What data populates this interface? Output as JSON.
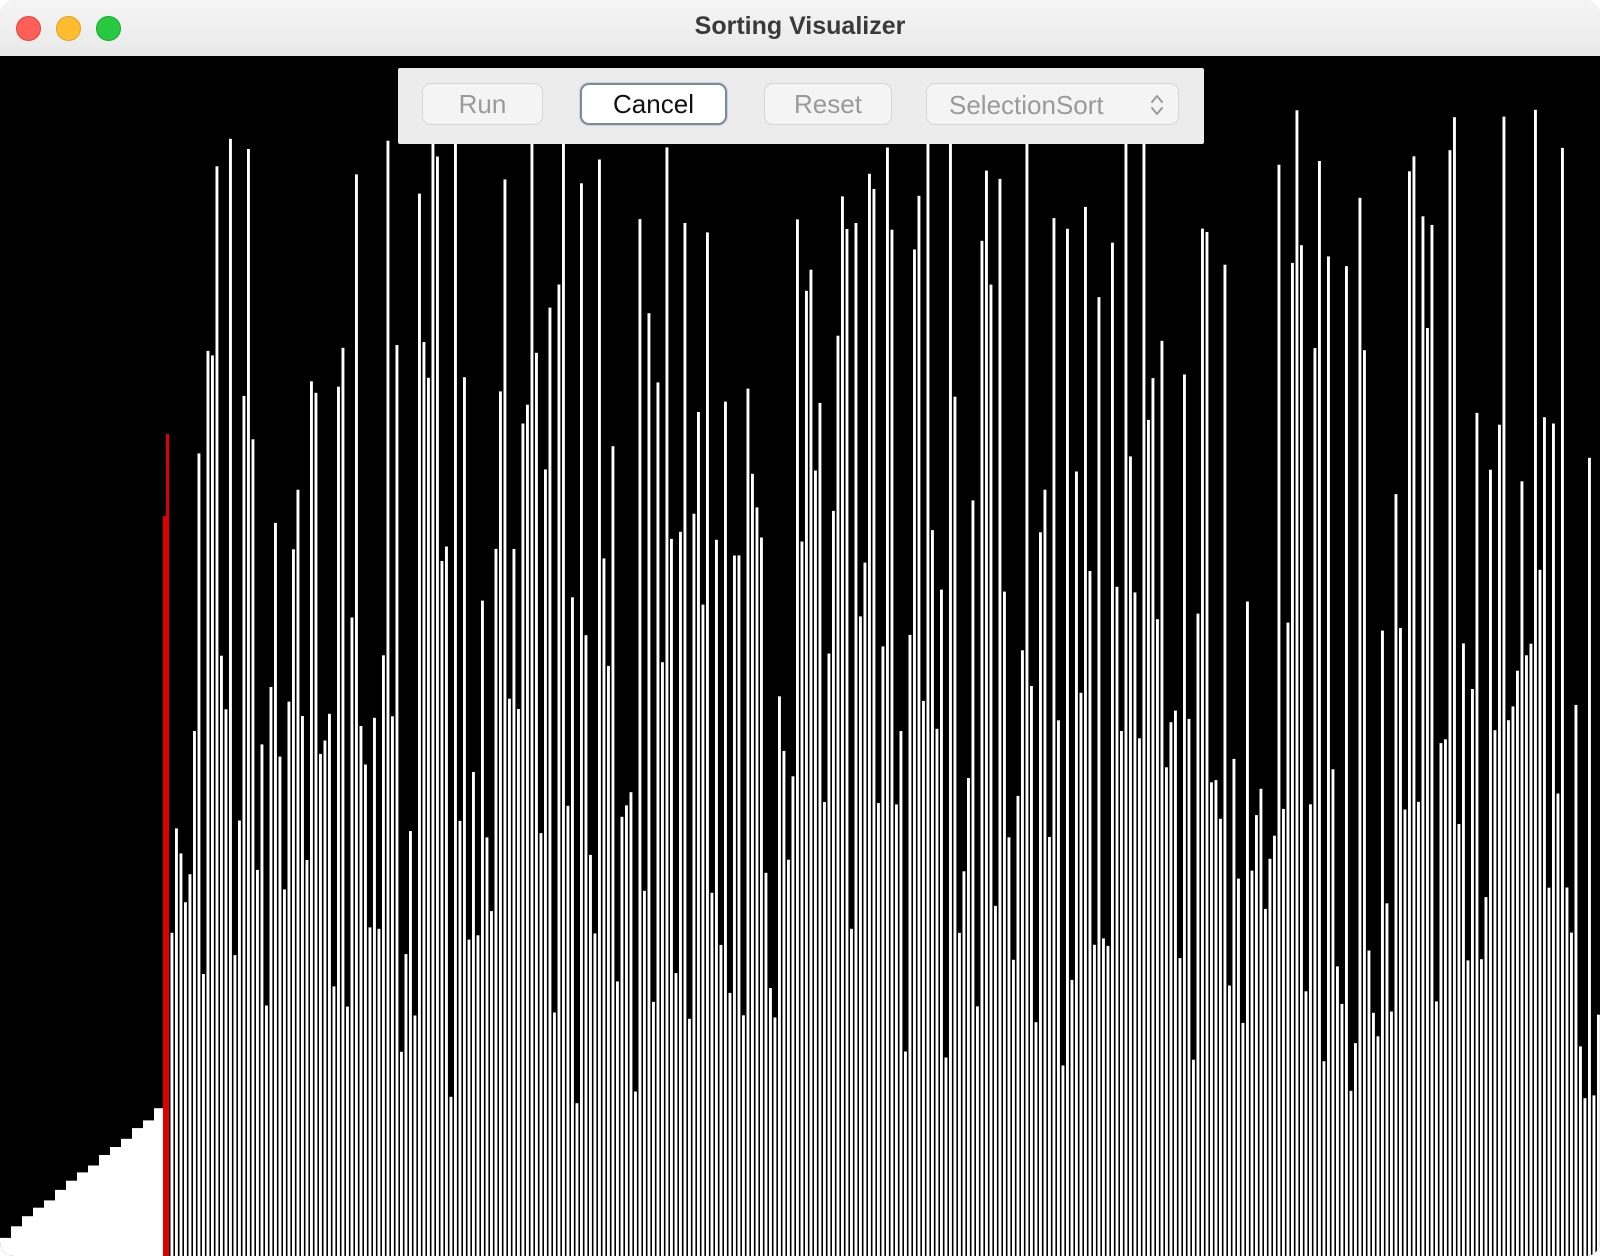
{
  "window": {
    "title": "Sorting Visualizer"
  },
  "toolbar": {
    "run_label": "Run",
    "cancel_label": "Cancel",
    "reset_label": "Reset",
    "algorithm_selected": "SelectionSort"
  },
  "visualization": {
    "background_color": "#000000",
    "bar_color": "#ffffff",
    "highlight_color": "#e00000",
    "highlight_index": 15
  },
  "icons": {
    "close": "close-icon",
    "minimize": "minimize-icon",
    "zoom": "zoom-icon",
    "select_arrows": "chevron-updown-icon"
  }
}
